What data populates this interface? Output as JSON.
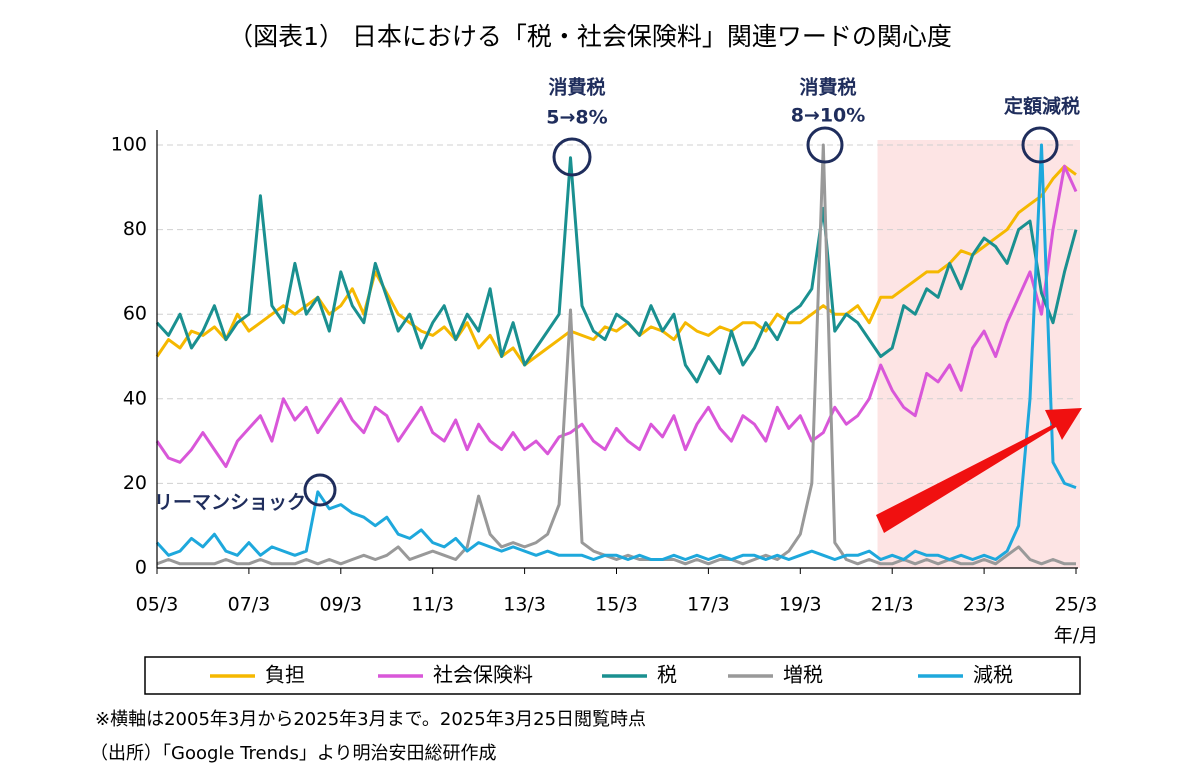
{
  "chart_data": {
    "type": "line",
    "title": "（図表1） 日本における「税・社会保険料」関連ワードの関心度",
    "x_label": "年/月",
    "xlim": [
      2005.17,
      2025.17
    ],
    "xticks": [
      {
        "value": 2005.17,
        "label": "05/3"
      },
      {
        "value": 2007.17,
        "label": "07/3"
      },
      {
        "value": 2009.17,
        "label": "09/3"
      },
      {
        "value": 2011.17,
        "label": "11/3"
      },
      {
        "value": 2013.17,
        "label": "13/3"
      },
      {
        "value": 2015.17,
        "label": "15/3"
      },
      {
        "value": 2017.17,
        "label": "17/3"
      },
      {
        "value": 2019.17,
        "label": "19/3"
      },
      {
        "value": 2021.17,
        "label": "21/3"
      },
      {
        "value": 2023.17,
        "label": "23/3"
      },
      {
        "value": 2025.17,
        "label": "25/3"
      }
    ],
    "ylim": [
      0,
      100
    ],
    "yticks": [
      0,
      20,
      40,
      60,
      80,
      100
    ],
    "grid": true,
    "shaded_region": {
      "xlim": [
        2020.85,
        2025.3
      ],
      "color": "#fde4e4"
    },
    "annotations": [
      "消費税",
      "5→8%",
      "消費税",
      "8→10%",
      "定額減税",
      "リーマンショック"
    ],
    "x": [
      2005.17,
      2005.42,
      2005.67,
      2005.92,
      2006.17,
      2006.42,
      2006.67,
      2006.92,
      2007.17,
      2007.42,
      2007.67,
      2007.92,
      2008.17,
      2008.42,
      2008.67,
      2008.92,
      2009.17,
      2009.42,
      2009.67,
      2009.92,
      2010.17,
      2010.42,
      2010.67,
      2010.92,
      2011.17,
      2011.42,
      2011.67,
      2011.92,
      2012.17,
      2012.42,
      2012.67,
      2012.92,
      2013.17,
      2013.42,
      2013.67,
      2013.92,
      2014.17,
      2014.42,
      2014.67,
      2014.92,
      2015.17,
      2015.42,
      2015.67,
      2015.92,
      2016.17,
      2016.42,
      2016.67,
      2016.92,
      2017.17,
      2017.42,
      2017.67,
      2017.92,
      2018.17,
      2018.42,
      2018.67,
      2018.92,
      2019.17,
      2019.42,
      2019.67,
      2019.92,
      2020.17,
      2020.42,
      2020.67,
      2020.92,
      2021.17,
      2021.42,
      2021.67,
      2021.92,
      2022.17,
      2022.42,
      2022.67,
      2022.92,
      2023.17,
      2023.42,
      2023.67,
      2023.92,
      2024.17,
      2024.42,
      2024.67,
      2024.92,
      2025.17
    ],
    "series": [
      {
        "name": "負担",
        "color": "#f5b800",
        "values": [
          50,
          54,
          52,
          56,
          55,
          57,
          54,
          60,
          56,
          58,
          60,
          62,
          60,
          62,
          64,
          60,
          62,
          66,
          60,
          70,
          65,
          60,
          58,
          56,
          55,
          57,
          54,
          58,
          52,
          55,
          50,
          52,
          48,
          50,
          52,
          54,
          56,
          55,
          54,
          57,
          56,
          58,
          55,
          57,
          56,
          54,
          58,
          56,
          55,
          57,
          56,
          58,
          58,
          56,
          60,
          58,
          58,
          60,
          62,
          60,
          60,
          62,
          58,
          64,
          64,
          66,
          68,
          70,
          70,
          72,
          75,
          74,
          76,
          78,
          80,
          84,
          86,
          88,
          92,
          95,
          93
        ]
      },
      {
        "name": "社会保険料",
        "color": "#d957d9",
        "values": [
          30,
          26,
          25,
          28,
          32,
          28,
          24,
          30,
          33,
          36,
          30,
          40,
          35,
          38,
          32,
          36,
          40,
          35,
          32,
          38,
          36,
          30,
          34,
          38,
          32,
          30,
          35,
          28,
          34,
          30,
          28,
          32,
          28,
          30,
          27,
          31,
          32,
          34,
          30,
          28,
          33,
          30,
          28,
          34,
          31,
          36,
          28,
          34,
          38,
          33,
          30,
          36,
          34,
          30,
          38,
          33,
          36,
          30,
          32,
          38,
          34,
          36,
          40,
          48,
          42,
          38,
          36,
          46,
          44,
          48,
          42,
          52,
          56,
          50,
          58,
          64,
          70,
          60,
          80,
          95,
          89
        ]
      },
      {
        "name": "税",
        "color": "#1a9090",
        "values": [
          58,
          55,
          60,
          52,
          56,
          62,
          54,
          58,
          60,
          88,
          62,
          58,
          72,
          60,
          64,
          56,
          70,
          62,
          58,
          72,
          64,
          56,
          60,
          52,
          58,
          62,
          54,
          60,
          56,
          66,
          50,
          58,
          48,
          52,
          56,
          60,
          97,
          62,
          56,
          54,
          60,
          58,
          55,
          62,
          56,
          60,
          48,
          44,
          50,
          46,
          56,
          48,
          52,
          58,
          54,
          60,
          62,
          66,
          85,
          56,
          60,
          58,
          54,
          50,
          52,
          62,
          60,
          66,
          64,
          72,
          66,
          74,
          78,
          76,
          72,
          80,
          82,
          65,
          58,
          70,
          80
        ]
      },
      {
        "name": "増税",
        "color": "#999999",
        "values": [
          1,
          2,
          1,
          1,
          1,
          1,
          2,
          1,
          1,
          2,
          1,
          1,
          1,
          2,
          1,
          2,
          1,
          2,
          3,
          2,
          3,
          5,
          2,
          3,
          4,
          3,
          2,
          5,
          17,
          8,
          5,
          6,
          5,
          6,
          8,
          15,
          61,
          6,
          4,
          3,
          2,
          3,
          2,
          2,
          2,
          2,
          1,
          2,
          1,
          2,
          2,
          1,
          2,
          3,
          2,
          4,
          8,
          20,
          100,
          6,
          2,
          1,
          2,
          1,
          1,
          2,
          1,
          2,
          1,
          2,
          1,
          1,
          2,
          1,
          3,
          5,
          2,
          1,
          2,
          1,
          1
        ]
      },
      {
        "name": "減税",
        "color": "#1ea8dc",
        "values": [
          6,
          3,
          4,
          7,
          5,
          8,
          4,
          3,
          6,
          3,
          5,
          4,
          3,
          4,
          18,
          14,
          15,
          13,
          12,
          10,
          12,
          8,
          7,
          9,
          6,
          5,
          7,
          4,
          6,
          5,
          4,
          5,
          4,
          3,
          4,
          3,
          3,
          3,
          2,
          3,
          3,
          2,
          3,
          2,
          2,
          3,
          2,
          3,
          2,
          3,
          2,
          3,
          3,
          2,
          3,
          2,
          3,
          4,
          3,
          2,
          3,
          3,
          4,
          2,
          3,
          2,
          4,
          3,
          3,
          2,
          3,
          2,
          3,
          2,
          4,
          10,
          40,
          100,
          25,
          20,
          19
        ]
      }
    ],
    "footnotes": [
      "※横軸は2005年3月から2025年3月まで。2025年3月25日閲覧時点",
      "（出所）「Google Trends」より明治安田総研作成"
    ]
  }
}
